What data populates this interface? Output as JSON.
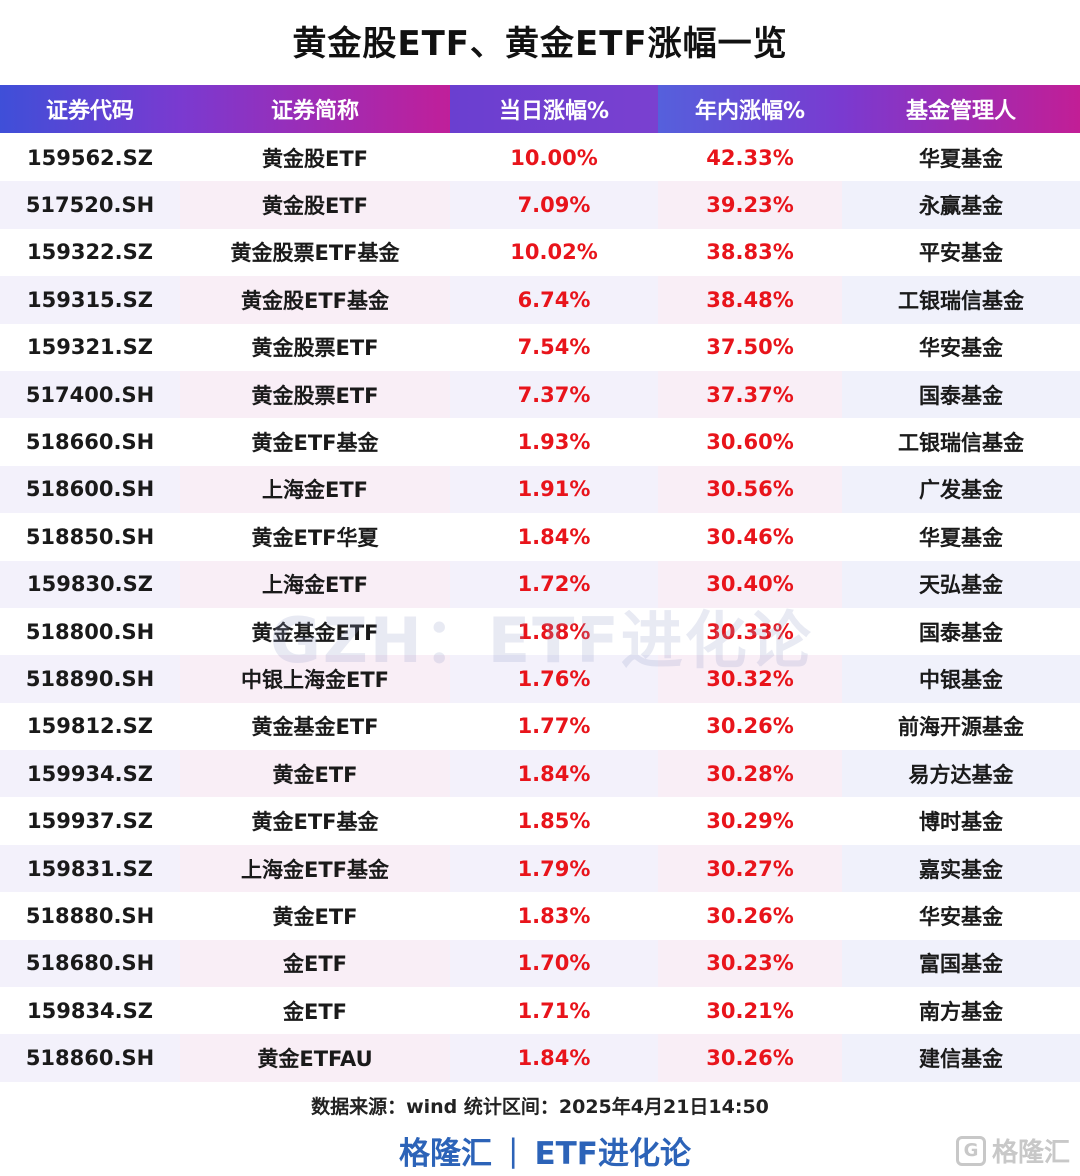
{
  "title": "黄金股ETF、黄金ETF涨幅一览",
  "columns": [
    "证券代码",
    "证券简称",
    "当日涨幅%",
    "年内涨幅%",
    "基金管理人"
  ],
  "rows": [
    [
      "159562.SZ",
      "黄金股ETF",
      "10.00%",
      "42.33%",
      "华夏基金"
    ],
    [
      "517520.SH",
      "黄金股ETF",
      "7.09%",
      "39.23%",
      "永赢基金"
    ],
    [
      "159322.SZ",
      "黄金股票ETF基金",
      "10.02%",
      "38.83%",
      "平安基金"
    ],
    [
      "159315.SZ",
      "黄金股ETF基金",
      "6.74%",
      "38.48%",
      "工银瑞信基金"
    ],
    [
      "159321.SZ",
      "黄金股票ETF",
      "7.54%",
      "37.50%",
      "华安基金"
    ],
    [
      "517400.SH",
      "黄金股票ETF",
      "7.37%",
      "37.37%",
      "国泰基金"
    ],
    [
      "518660.SH",
      "黄金ETF基金",
      "1.93%",
      "30.60%",
      "工银瑞信基金"
    ],
    [
      "518600.SH",
      "上海金ETF",
      "1.91%",
      "30.56%",
      "广发基金"
    ],
    [
      "518850.SH",
      "黄金ETF华夏",
      "1.84%",
      "30.46%",
      "华夏基金"
    ],
    [
      "159830.SZ",
      "上海金ETF",
      "1.72%",
      "30.40%",
      "天弘基金"
    ],
    [
      "518800.SH",
      "黄金基金ETF",
      "1.88%",
      "30.33%",
      "国泰基金"
    ],
    [
      "518890.SH",
      "中银上海金ETF",
      "1.76%",
      "30.32%",
      "中银基金"
    ],
    [
      "159812.SZ",
      "黄金基金ETF",
      "1.77%",
      "30.26%",
      "前海开源基金"
    ],
    [
      "159934.SZ",
      "黄金ETF",
      "1.84%",
      "30.28%",
      "易方达基金"
    ],
    [
      "159937.SZ",
      "黄金ETF基金",
      "1.85%",
      "30.29%",
      "博时基金"
    ],
    [
      "159831.SZ",
      "上海金ETF基金",
      "1.79%",
      "30.27%",
      "嘉实基金"
    ],
    [
      "518880.SH",
      "黄金ETF",
      "1.83%",
      "30.26%",
      "华安基金"
    ],
    [
      "518680.SH",
      "金ETF",
      "1.70%",
      "30.23%",
      "富国基金"
    ],
    [
      "159834.SZ",
      "金ETF",
      "1.71%",
      "30.21%",
      "南方基金"
    ],
    [
      "518860.SH",
      "黄金ETFAU",
      "1.84%",
      "30.26%",
      "建信基金"
    ]
  ],
  "watermark": "GZH：ETF进化论",
  "source": "数据来源：wind  统计区间：2025年4月21日14:50",
  "brand": {
    "left": "格隆汇",
    "sep": "|",
    "right": "ETF进化论"
  },
  "logo": {
    "icon": "G",
    "text": "格隆汇"
  },
  "colors": {
    "positive": "#e8141b",
    "header_start": "#3f4fd8",
    "header_end": "#c21e96"
  }
}
